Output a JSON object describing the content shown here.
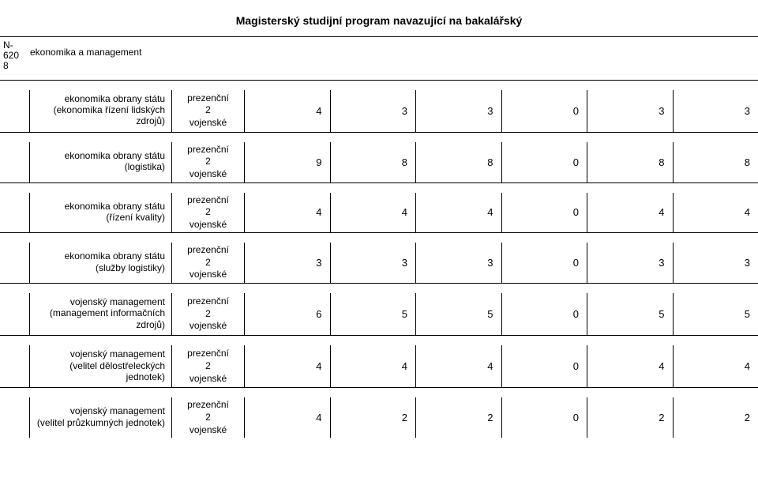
{
  "title": "Magisterský studijní program navazující na bakalářský",
  "section": {
    "code_l1": "N-",
    "code_l2": "620",
    "code_l3": "8",
    "name": "ekonomika a management"
  },
  "study_form": {
    "line1": "prezenční",
    "line2": "2",
    "line3": "vojenské"
  },
  "rows": [
    {
      "label_l1": "ekonomika obrany státu",
      "label_l2": "(ekonomika řízení lidských zdrojů)",
      "values": [
        "4",
        "3",
        "3",
        "0",
        "3",
        "3"
      ]
    },
    {
      "label_l1": "ekonomika obrany státu",
      "label_l2": "(logistika)",
      "values": [
        "9",
        "8",
        "8",
        "0",
        "8",
        "8"
      ]
    },
    {
      "label_l1": "ekonomika obrany státu",
      "label_l2": "(řízení kvality)",
      "values": [
        "4",
        "4",
        "4",
        "0",
        "4",
        "4"
      ]
    },
    {
      "label_l1": "ekonomika obrany státu",
      "label_l2": "(služby logistiky)",
      "values": [
        "3",
        "3",
        "3",
        "0",
        "3",
        "3"
      ]
    },
    {
      "label_l1": "vojenský management",
      "label_l2": "(management informačních",
      "label_l3": "zdrojů)",
      "values": [
        "6",
        "5",
        "5",
        "0",
        "5",
        "5"
      ]
    },
    {
      "label_l1": "vojenský management",
      "label_l2": "(velitel dělostřeleckých jednotek)",
      "values": [
        "4",
        "4",
        "4",
        "0",
        "4",
        "4"
      ]
    },
    {
      "label_l1": "vojenský management",
      "label_l2": "(velitel průzkumných jednotek)",
      "values": [
        "4",
        "2",
        "2",
        "0",
        "2",
        "2"
      ]
    }
  ]
}
